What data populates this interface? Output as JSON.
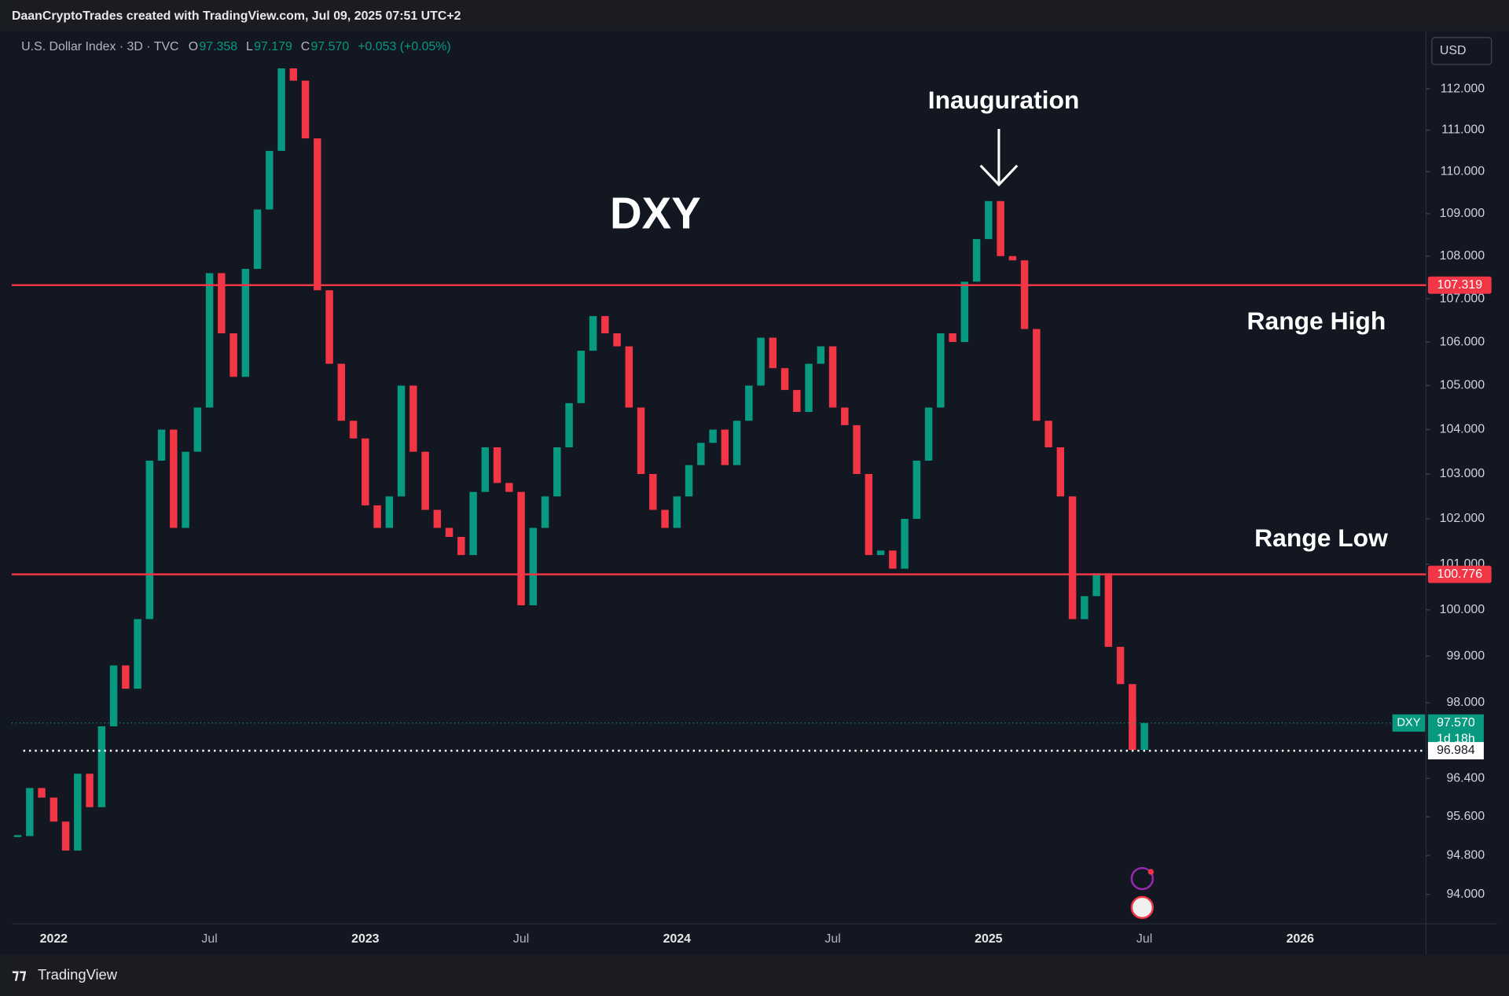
{
  "chart_data": {
    "type": "candlestick",
    "caption": "DaanCryptoTrades created with TradingView.com, Jul 09, 2025 07:51 UTC+2",
    "symbol": "U.S. Dollar Index · 3D · TVC",
    "ohlc_keys": [
      "O",
      "L",
      "C"
    ],
    "ohlc_values": [
      {
        "value": 97.358,
        "label": "97.358"
      },
      {
        "value": 97.179,
        "label": "97.179"
      },
      {
        "value": 97.57,
        "label": "97.570"
      }
    ],
    "change": "+0.053 (+0.05%)",
    "currency": "USD",
    "title": "DXY",
    "event_label": "Inauguration",
    "levels": [
      {
        "name": "Range High",
        "value": 107.319,
        "label": "107.319",
        "color": "#f23645"
      },
      {
        "name": "Range Low",
        "value": 100.776,
        "label": "100.776",
        "color": "#f23645"
      }
    ],
    "last_price": {
      "value": 97.57,
      "label": "97.570",
      "countdown": "1d 18h"
    },
    "crosshair": {
      "value": 96.984,
      "label": "96.984"
    },
    "footer": "TradingView",
    "log_scale": true,
    "grid": false,
    "categories": [
      null,
      null,
      null,
      "2022",
      null,
      null,
      null,
      null,
      null,
      null,
      null,
      null,
      null,
      null,
      null,
      null,
      "Jul",
      null,
      null,
      null,
      null,
      null,
      null,
      null,
      null,
      null,
      null,
      null,
      null,
      "2023",
      null,
      null,
      null,
      null,
      null,
      null,
      null,
      null,
      null,
      null,
      null,
      null,
      "Jul",
      null,
      null,
      null,
      null,
      null,
      null,
      null,
      null,
      null,
      null,
      null,
      null,
      "2024",
      null,
      null,
      null,
      null,
      null,
      null,
      null,
      null,
      null,
      null,
      null,
      null,
      "Jul",
      null,
      null,
      null,
      null,
      null,
      null,
      null,
      null,
      null,
      null,
      null,
      null,
      "2025",
      null,
      null,
      null,
      null,
      null,
      null,
      null,
      null,
      null,
      null,
      null,
      null,
      "Jul",
      null,
      null,
      null,
      null,
      null,
      null,
      null,
      null,
      null,
      null,
      null,
      null,
      "2026",
      null,
      null,
      null,
      null,
      null,
      null,
      null,
      null,
      null,
      null
    ],
    "series": [
      {
        "name": "DXY",
        "up_color": "#089981",
        "down_color": "#f23645",
        "values": [
          95.2,
          96.2,
          96.0,
          95.5,
          94.9,
          96.5,
          95.8,
          97.5,
          98.8,
          98.3,
          99.8,
          103.3,
          104.0,
          101.8,
          103.5,
          104.5,
          107.6,
          106.2,
          105.2,
          107.7,
          109.1,
          110.5,
          112.5,
          112.2,
          110.8,
          107.2,
          105.5,
          104.2,
          103.8,
          102.3,
          101.8,
          102.5,
          105.0,
          103.5,
          102.2,
          101.8,
          101.6,
          101.2,
          102.6,
          103.6,
          102.8,
          102.6,
          100.1,
          101.8,
          102.5,
          103.6,
          104.6,
          105.8,
          106.6,
          106.2,
          105.9,
          104.5,
          103.0,
          102.2,
          101.8,
          102.5,
          103.2,
          103.7,
          104.0,
          103.2,
          104.2,
          105.0,
          106.1,
          105.4,
          104.9,
          104.4,
          105.5,
          105.9,
          104.5,
          104.1,
          103.0,
          101.2,
          101.3,
          100.9,
          102.0,
          103.3,
          104.5,
          106.2,
          106.0,
          107.4,
          108.4,
          109.3,
          108.0,
          107.9,
          106.3,
          104.2,
          103.6,
          102.5,
          99.8,
          100.3,
          100.8,
          99.2,
          98.4,
          97.0,
          97.57,
          null,
          null,
          null,
          null,
          null,
          null,
          null,
          null,
          null,
          null,
          null,
          null,
          null,
          null,
          null,
          null,
          null,
          null,
          null,
          null,
          null,
          null,
          null
        ]
      }
    ],
    "ylim": [
      93.4,
      113.4
    ],
    "yticks": [
      {
        "value": 94,
        "label": "94.000"
      },
      {
        "value": 94.8,
        "label": "94.800"
      },
      {
        "value": 95.6,
        "label": "95.600"
      },
      {
        "value": 96.4,
        "label": "96.400"
      },
      {
        "value": 98,
        "label": "98.000"
      },
      {
        "value": 99,
        "label": "99.000"
      },
      {
        "value": 100,
        "label": "100.000"
      },
      {
        "value": 101,
        "label": "101.000"
      },
      {
        "value": 102,
        "label": "102.000"
      },
      {
        "value": 103,
        "label": "103.000"
      },
      {
        "value": 104,
        "label": "104.000"
      },
      {
        "value": 105,
        "label": "105.000"
      },
      {
        "value": 106,
        "label": "106.000"
      },
      {
        "value": 107,
        "label": "107.000"
      },
      {
        "value": 108,
        "label": "108.000"
      },
      {
        "value": 109,
        "label": "109.000"
      },
      {
        "value": 110,
        "label": "110.000"
      },
      {
        "value": 111,
        "label": "111.000"
      },
      {
        "value": 112,
        "label": "112.000"
      }
    ]
  }
}
